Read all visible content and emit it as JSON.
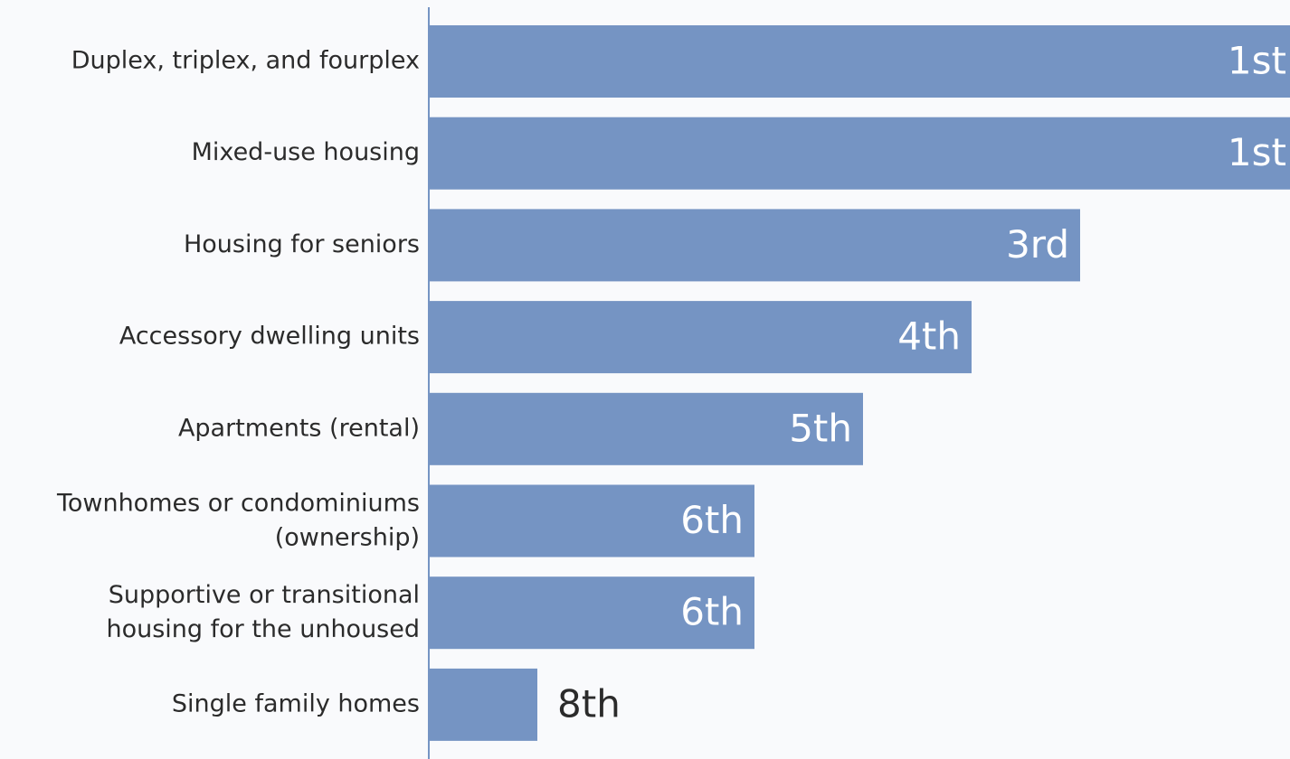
{
  "chart_data": {
    "type": "bar",
    "orientation": "horizontal",
    "categories": [
      "Duplex, triplex, and fourplex",
      "Mixed-use housing",
      "Housing for seniors",
      "Accessory dwelling units",
      "Apartments (rental)",
      "Townhomes or condominiums\n(ownership)",
      "Supportive or transitional\nhousing for the unhoused",
      "Single family homes"
    ],
    "values": [
      1,
      1,
      3,
      4,
      5,
      6,
      6,
      8
    ],
    "value_labels": [
      "1st",
      "1st",
      "3rd",
      "4th",
      "5th",
      "6th",
      "6th",
      "8th"
    ],
    "color": "#7594c3",
    "xlim": [
      9,
      1
    ]
  }
}
